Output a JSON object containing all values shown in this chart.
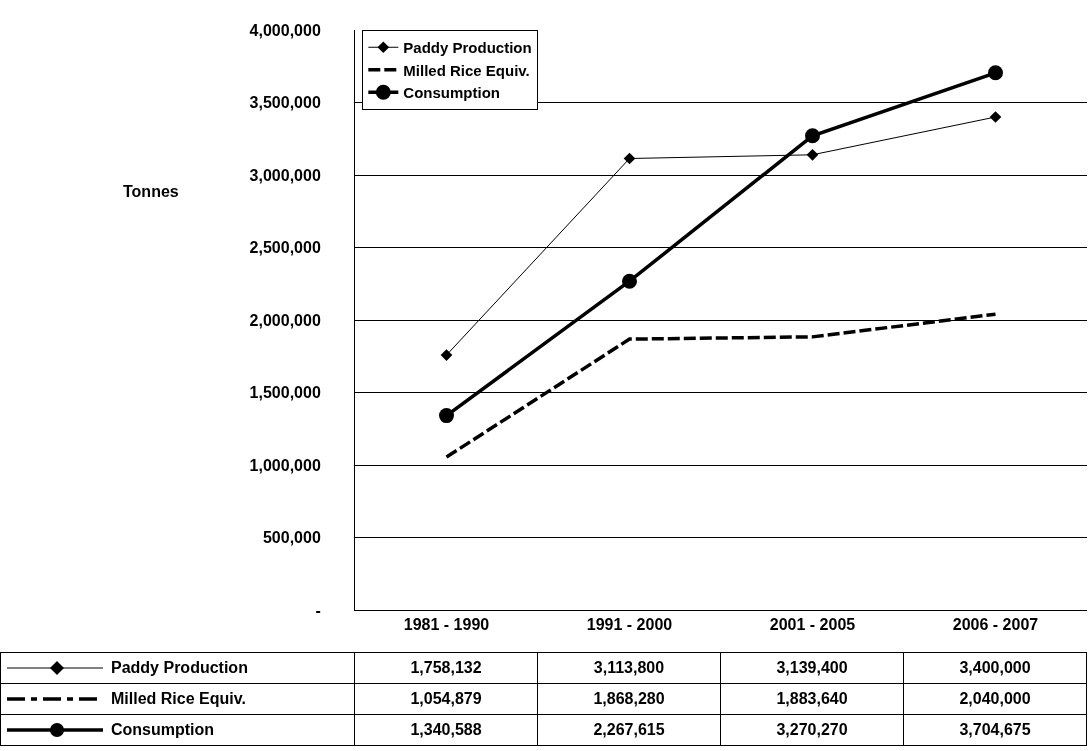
{
  "chart_data": {
    "type": "line",
    "ylabel": "Tonnes",
    "categories": [
      "1981 - 1990",
      "1991 - 2000",
      "2001 - 2005",
      "2006 - 2007"
    ],
    "series": [
      {
        "name": "Paddy Production",
        "color": "#000000",
        "marker": "diamond",
        "line_style": "solid",
        "values": [
          1758132,
          3113800,
          3139400,
          3400000
        ],
        "value_labels": [
          "1,758,132",
          "3,113,800",
          "3,139,400",
          "3,400,000"
        ]
      },
      {
        "name": "Milled Rice Equiv.",
        "color": "#000000",
        "marker": "none",
        "line_style": "dashed",
        "values": [
          1054879,
          1868280,
          1883640,
          2040000
        ],
        "value_labels": [
          "1,054,879",
          "1,868,280",
          "1,883,640",
          "2,040,000"
        ]
      },
      {
        "name": "Consumption",
        "color": "#000000",
        "marker": "circle",
        "line_style": "solid",
        "values": [
          1340588,
          2267615,
          3270270,
          3704675
        ],
        "value_labels": [
          "1,340,588",
          "2,267,615",
          "3,270,270",
          "3,704,675"
        ]
      }
    ],
    "ylim": [
      0,
      4000000
    ],
    "yticks": [
      {
        "value": 0,
        "label": "-"
      },
      {
        "value": 500000,
        "label": "500,000"
      },
      {
        "value": 1000000,
        "label": "1,000,000"
      },
      {
        "value": 1500000,
        "label": "1,500,000"
      },
      {
        "value": 2000000,
        "label": "2,000,000"
      },
      {
        "value": 2500000,
        "label": "2,500,000"
      },
      {
        "value": 3000000,
        "label": "3,000,000"
      },
      {
        "value": 3500000,
        "label": "3,500,000"
      },
      {
        "value": 4000000,
        "label": "4,000,000"
      }
    ],
    "grid": "y",
    "legend": "top left"
  }
}
